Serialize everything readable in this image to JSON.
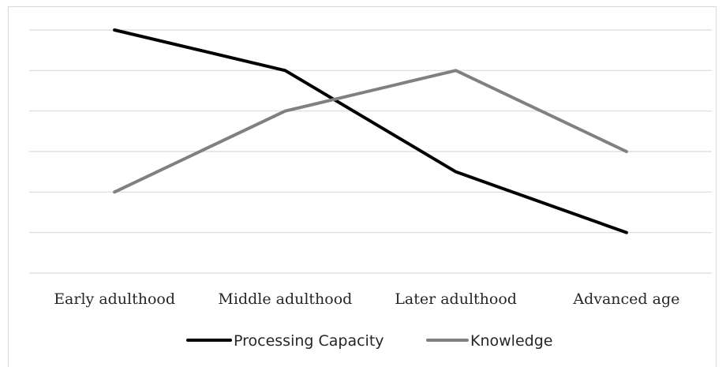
{
  "chart_data": {
    "type": "line",
    "categories": [
      "Early adulthood",
      "Middle adulthood",
      "Later adulthood",
      "Advanced age"
    ],
    "series": [
      {
        "name": "Processing Capacity",
        "values": [
          6,
          5,
          2.5,
          1
        ],
        "color": "#000000"
      },
      {
        "name": "Knowledge",
        "values": [
          2,
          4,
          5,
          3
        ],
        "color": "#808080"
      }
    ],
    "ylim": [
      0,
      6
    ],
    "grid": true,
    "legend": "bottom",
    "title": "",
    "xlabel": "",
    "ylabel": ""
  }
}
